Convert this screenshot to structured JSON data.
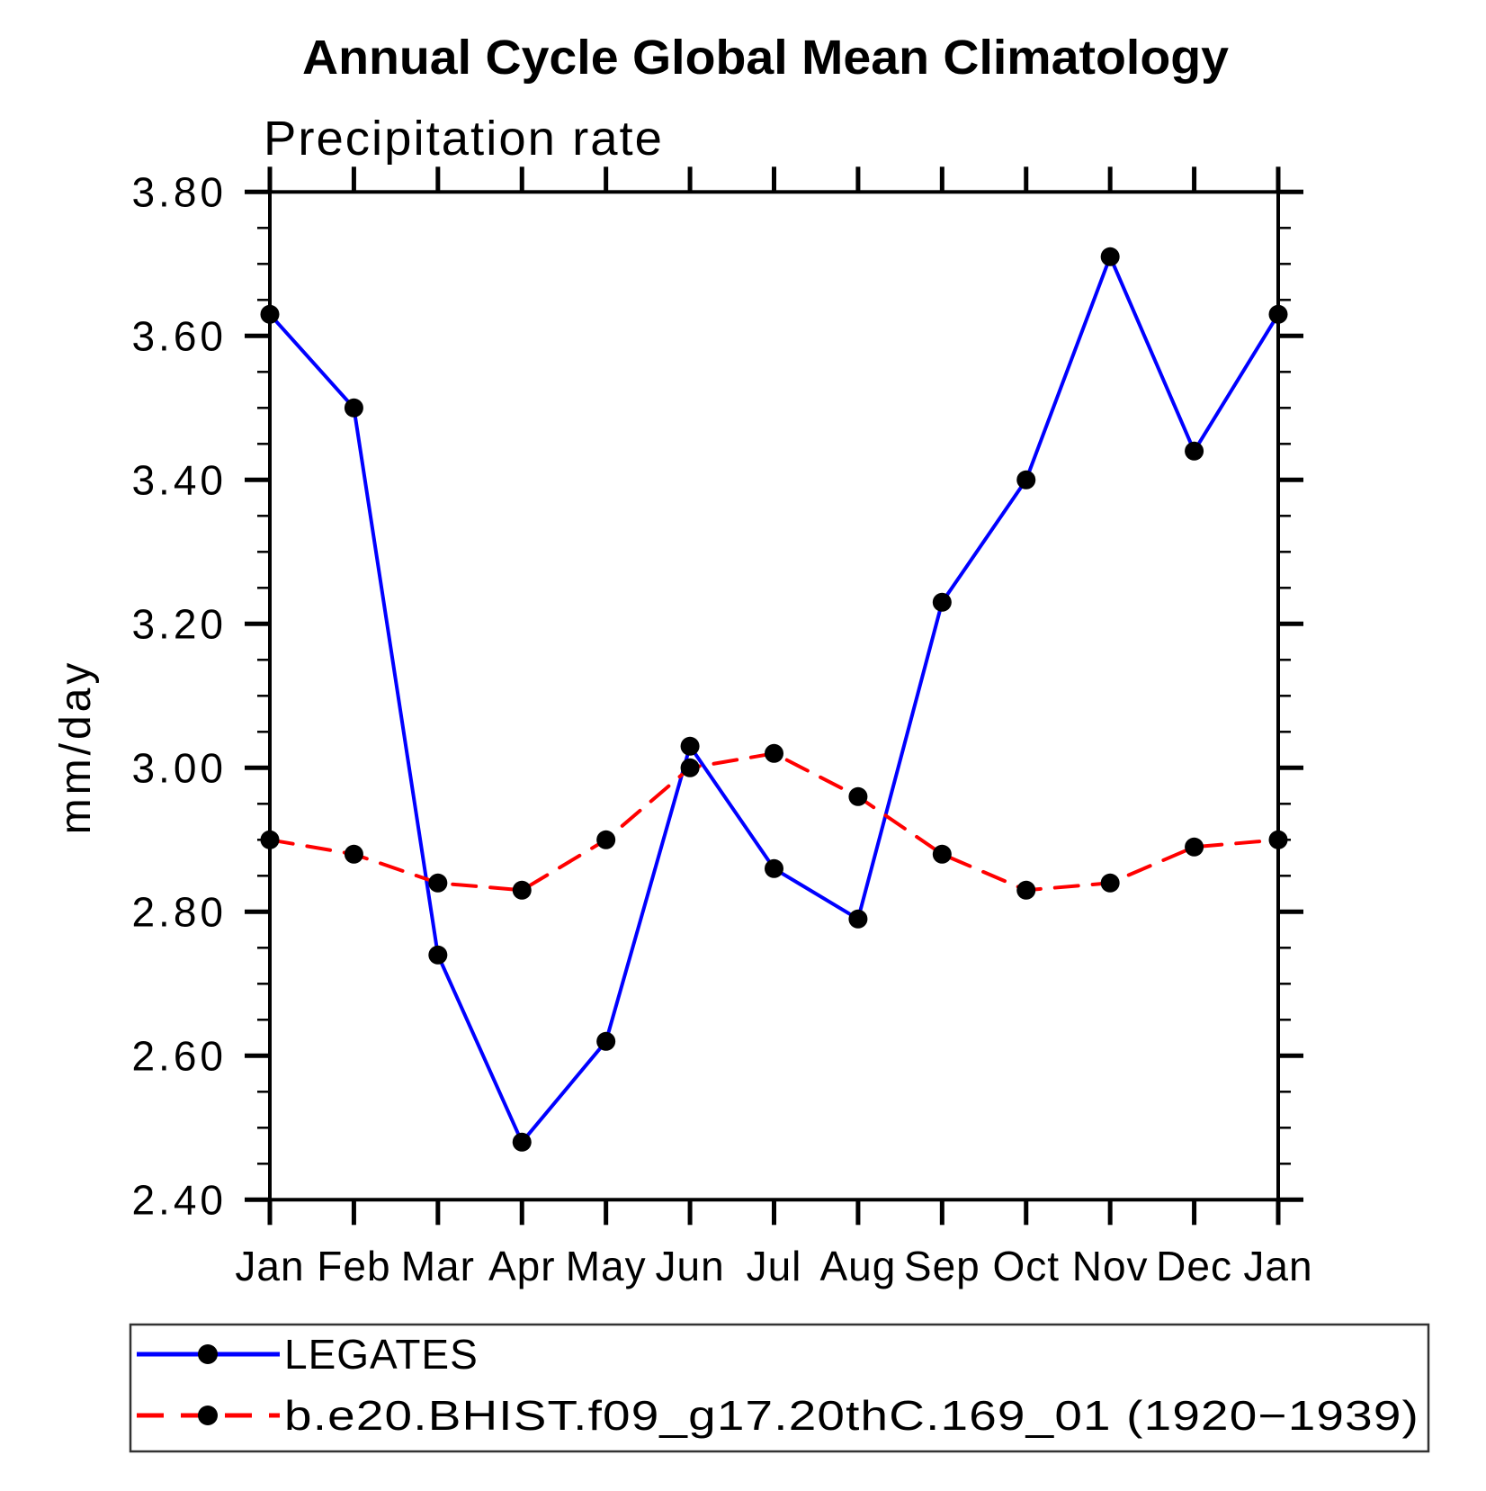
{
  "chart_data": {
    "type": "line",
    "title": "Annual Cycle Global Mean Climatology",
    "subtitle": "Precipitation rate",
    "ylabel": "mm/day",
    "xlabel": "",
    "x_categories": [
      "Jan",
      "Feb",
      "Mar",
      "Apr",
      "May",
      "Jun",
      "Jul",
      "Aug",
      "Sep",
      "Oct",
      "Nov",
      "Dec",
      "Jan"
    ],
    "ylim": [
      2.4,
      3.8
    ],
    "y_major_step": 0.2,
    "y_minor_step": 0.05,
    "grid": "off",
    "legend_position": "bottom-left-box",
    "series": [
      {
        "name": "LEGATES",
        "color": "#0000ff",
        "line_style": "solid",
        "marker": "filled-circle",
        "marker_color": "#000000",
        "values": [
          3.63,
          3.5,
          2.74,
          2.48,
          2.62,
          3.03,
          2.86,
          2.79,
          3.23,
          3.4,
          3.71,
          3.44,
          3.63
        ]
      },
      {
        "name": "b.e20.BHIST.f09_g17.20thC.169_01 (1920−1939)",
        "color": "#ff0000",
        "line_style": "dashed",
        "marker": "filled-circle",
        "marker_color": "#000000",
        "values": [
          2.9,
          2.88,
          2.84,
          2.83,
          2.9,
          3.0,
          3.02,
          2.96,
          2.88,
          2.83,
          2.84,
          2.89,
          2.9
        ]
      }
    ]
  }
}
